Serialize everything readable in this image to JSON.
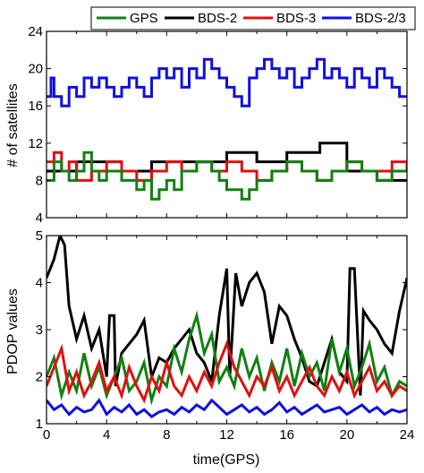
{
  "chart_data": [
    {
      "type": "line",
      "ylabel": "# of satellites",
      "xlim": [
        0,
        24
      ],
      "ylim": [
        4,
        24
      ],
      "yticks": [
        "4",
        "8",
        "12",
        "16",
        "20",
        "24"
      ],
      "grid": false,
      "series": [
        {
          "name": "BDS-2/3",
          "color": "#1010e0",
          "step": true,
          "x": [
            0,
            0.3,
            0.5,
            1,
            1.5,
            2,
            2.5,
            3,
            3.5,
            4,
            4.5,
            5,
            5.5,
            6,
            6.5,
            7,
            7.5,
            8,
            8.5,
            9,
            9.5,
            10,
            10.5,
            11,
            11.5,
            12,
            12.5,
            13,
            13.5,
            14,
            14.5,
            15,
            15.5,
            16,
            16.5,
            17,
            17.5,
            18,
            18.5,
            19,
            19.5,
            20,
            20.5,
            21,
            21.5,
            22,
            22.5,
            23,
            23.5,
            24
          ],
          "y": [
            17,
            19,
            17,
            16,
            18,
            17,
            19,
            18,
            19,
            18,
            17,
            18,
            19,
            18,
            17,
            19,
            20,
            19,
            20,
            18,
            20,
            19,
            21,
            20,
            19,
            18,
            17,
            16,
            19,
            20,
            21,
            20,
            19,
            20,
            18,
            19,
            20,
            21,
            19,
            20,
            19,
            18,
            20,
            19,
            18,
            20,
            19,
            18,
            17,
            17
          ]
        },
        {
          "name": "BDS-2",
          "color": "#000000",
          "step": true,
          "x": [
            0,
            2,
            3,
            5,
            7,
            10,
            12,
            14,
            16,
            18,
            18.2,
            20,
            22,
            24
          ],
          "y": [
            9,
            10,
            10,
            9,
            10,
            10,
            11,
            10,
            11,
            11,
            12,
            9,
            8,
            8
          ]
        },
        {
          "name": "BDS-3",
          "color": "#e01010",
          "step": true,
          "x": [
            0,
            0.5,
            1,
            1.5,
            2,
            3,
            4,
            5,
            6,
            7,
            8,
            9,
            10,
            11,
            12,
            13,
            14,
            15,
            16,
            17,
            18,
            19,
            20,
            21,
            22,
            23,
            24
          ],
          "y": [
            10,
            11,
            9,
            10,
            8,
            9,
            10,
            9,
            8,
            9,
            10,
            9,
            10,
            9,
            10,
            9,
            8,
            9,
            10,
            9,
            8,
            9,
            10,
            9,
            9,
            10,
            9
          ]
        },
        {
          "name": "GPS",
          "color": "#128012",
          "step": true,
          "x": [
            0,
            0.5,
            1,
            1.5,
            2,
            2.5,
            3,
            3.5,
            4,
            5,
            6,
            6.5,
            7,
            7.5,
            8,
            8.5,
            9,
            10,
            11,
            11.5,
            12,
            13,
            13.5,
            14,
            15,
            16,
            17,
            18,
            19,
            20,
            21,
            22,
            23,
            24
          ],
          "y": [
            8,
            10,
            9,
            8,
            9,
            11,
            9,
            8,
            9,
            8,
            7,
            8,
            6,
            7,
            8,
            7,
            9,
            10,
            9,
            8,
            7,
            6,
            7,
            8,
            9,
            10,
            9,
            8,
            9,
            10,
            9,
            8,
            9,
            9
          ]
        }
      ]
    },
    {
      "type": "line",
      "xlabel": "time(GPS)",
      "ylabel": "PDOP values",
      "xlim": [
        0,
        24
      ],
      "ylim": [
        1,
        5
      ],
      "xticks": [
        "0",
        "4",
        "8",
        "12",
        "16",
        "20",
        "24"
      ],
      "yticks": [
        "1",
        "2",
        "3",
        "4",
        "5"
      ],
      "grid": false,
      "series": [
        {
          "name": "BDS-2",
          "color": "#000000",
          "x": [
            0,
            0.5,
            0.9,
            1.2,
            1.5,
            2,
            2.5,
            3,
            3.5,
            4,
            4.2,
            4.5,
            4.6,
            5,
            6,
            6.5,
            7,
            7.5,
            8,
            8.5,
            9,
            9.5,
            10,
            10.5,
            11,
            11.5,
            12,
            12.2,
            12.6,
            13,
            13.5,
            14,
            14.5,
            15,
            15.5,
            16,
            16.5,
            17,
            17.5,
            18,
            18.5,
            19,
            19.5,
            20,
            20.2,
            20.5,
            20.9,
            21.1,
            21.5,
            22,
            22.5,
            23,
            23.5,
            24
          ],
          "y": [
            4.1,
            4.5,
            5.0,
            4.8,
            3.5,
            2.8,
            3.3,
            2.6,
            3.0,
            2.0,
            3.3,
            3.3,
            1.8,
            2.5,
            2.9,
            3.2,
            2.0,
            2.4,
            2.3,
            2.6,
            2.8,
            3.0,
            2.5,
            2.3,
            1.9,
            3.3,
            4.3,
            2.0,
            4.2,
            3.5,
            4.0,
            4.2,
            3.8,
            2.7,
            3.5,
            3.3,
            2.8,
            2.4,
            1.9,
            1.8,
            2.3,
            2.8,
            2.1,
            1.9,
            4.3,
            4.3,
            1.6,
            3.4,
            3.2,
            3.0,
            2.7,
            2.5,
            3.4,
            4.1
          ]
        },
        {
          "name": "GPS",
          "color": "#128012",
          "x": [
            0,
            0.5,
            1,
            1.5,
            2,
            2.5,
            3,
            3.5,
            4,
            4.5,
            5,
            5.5,
            6,
            6.5,
            7,
            7.5,
            8,
            8.5,
            9,
            9.5,
            10,
            10.5,
            11,
            11.5,
            12,
            12.5,
            13,
            13.5,
            14,
            14.5,
            15,
            15.5,
            16,
            16.5,
            17,
            17.5,
            18,
            18.5,
            19,
            19.5,
            20,
            20.5,
            21,
            21.5,
            22,
            22.5,
            23,
            23.5,
            24
          ],
          "y": [
            2.0,
            2.4,
            1.6,
            2.1,
            1.7,
            2.5,
            1.8,
            2.2,
            1.6,
            2.0,
            2.4,
            1.7,
            1.9,
            2.3,
            1.5,
            2.0,
            1.8,
            2.6,
            2.1,
            2.8,
            3.3,
            2.5,
            2.9,
            1.9,
            2.2,
            1.8,
            2.6,
            2.0,
            2.4,
            1.7,
            2.3,
            1.9,
            2.6,
            1.8,
            2.5,
            2.0,
            2.3,
            1.7,
            2.8,
            2.1,
            2.6,
            1.8,
            2.2,
            2.7,
            1.9,
            2.2,
            1.6,
            1.9,
            1.8
          ]
        },
        {
          "name": "BDS-3",
          "color": "#e01010",
          "x": [
            0,
            0.5,
            1,
            1.5,
            2,
            2.5,
            3,
            3.5,
            4,
            4.5,
            5,
            5.5,
            6,
            6.5,
            7,
            7.5,
            8,
            8.5,
            9,
            9.5,
            10,
            10.5,
            11,
            11.5,
            12,
            12.5,
            13,
            13.5,
            14,
            14.5,
            15,
            15.5,
            16,
            16.5,
            17,
            17.5,
            18,
            18.5,
            19,
            19.5,
            20,
            20.5,
            21,
            21.5,
            22,
            22.5,
            23,
            23.5,
            24
          ],
          "y": [
            1.8,
            2.2,
            2.6,
            1.7,
            2.1,
            1.6,
            1.9,
            2.3,
            1.7,
            2.0,
            1.6,
            2.2,
            1.8,
            1.5,
            2.0,
            1.7,
            2.3,
            1.8,
            1.6,
            2.0,
            1.7,
            2.1,
            1.8,
            2.3,
            2.7,
            2.2,
            1.9,
            1.6,
            2.0,
            1.8,
            2.2,
            1.7,
            2.0,
            1.6,
            1.9,
            2.2,
            1.8,
            1.6,
            2.0,
            1.7,
            2.1,
            1.6,
            1.9,
            2.2,
            1.7,
            1.9,
            1.6,
            1.8,
            1.7
          ]
        },
        {
          "name": "BDS-2/3",
          "color": "#1010e0",
          "x": [
            0,
            0.5,
            1,
            1.5,
            2,
            2.5,
            3,
            3.5,
            4,
            4.5,
            5,
            5.5,
            6,
            6.5,
            7,
            7.5,
            8,
            8.5,
            9,
            9.5,
            10,
            10.5,
            11,
            11.5,
            12,
            12.5,
            13,
            13.5,
            14,
            14.5,
            15,
            15.5,
            16,
            16.5,
            17,
            17.5,
            18,
            18.5,
            19,
            19.5,
            20,
            20.5,
            21,
            21.5,
            22,
            22.5,
            23,
            23.5,
            24
          ],
          "y": [
            1.5,
            1.3,
            1.4,
            1.2,
            1.35,
            1.25,
            1.3,
            1.5,
            1.2,
            1.35,
            1.25,
            1.4,
            1.2,
            1.3,
            1.15,
            1.25,
            1.3,
            1.2,
            1.35,
            1.25,
            1.4,
            1.3,
            1.5,
            1.35,
            1.2,
            1.3,
            1.4,
            1.25,
            1.35,
            1.2,
            1.3,
            1.45,
            1.25,
            1.35,
            1.2,
            1.3,
            1.4,
            1.25,
            1.3,
            1.35,
            1.2,
            1.3,
            1.4,
            1.25,
            1.35,
            1.2,
            1.3,
            1.25,
            1.3
          ]
        }
      ]
    }
  ],
  "legend": {
    "position": "top",
    "entries": [
      {
        "label": "GPS",
        "color": "#128012"
      },
      {
        "label": "BDS-2",
        "color": "#000000"
      },
      {
        "label": "BDS-3",
        "color": "#e01010"
      },
      {
        "label": "BDS-2/3",
        "color": "#1010e0"
      }
    ]
  }
}
